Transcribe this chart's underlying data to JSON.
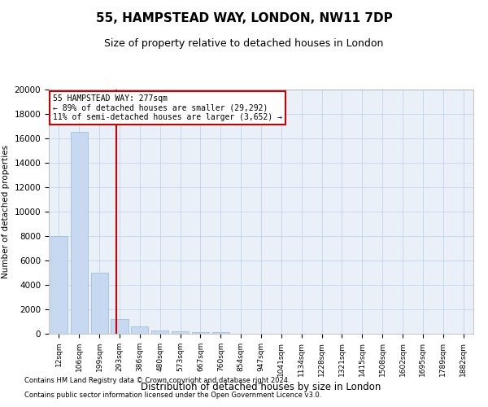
{
  "title": "55, HAMPSTEAD WAY, LONDON, NW11 7DP",
  "subtitle": "Size of property relative to detached houses in London",
  "xlabel": "Distribution of detached houses by size in London",
  "ylabel": "Number of detached properties",
  "footnote1": "Contains HM Land Registry data © Crown copyright and database right 2024.",
  "footnote2": "Contains public sector information licensed under the Open Government Licence v3.0.",
  "property_label": "55 HAMPSTEAD WAY: 277sqm",
  "annotation_line1": "← 89% of detached houses are smaller (29,292)",
  "annotation_line2": "11% of semi-detached houses are larger (3,652) →",
  "bar_color": "#c6d9f0",
  "bar_edge_color": "#9ab8d8",
  "vline_color": "#cc0000",
  "annotation_box_color": "#cc0000",
  "categories": [
    "12sqm",
    "106sqm",
    "199sqm",
    "293sqm",
    "386sqm",
    "480sqm",
    "573sqm",
    "667sqm",
    "760sqm",
    "854sqm",
    "947sqm",
    "1041sqm",
    "1134sqm",
    "1228sqm",
    "1321sqm",
    "1415sqm",
    "1508sqm",
    "1602sqm",
    "1695sqm",
    "1789sqm",
    "1882sqm"
  ],
  "values": [
    8000,
    16500,
    5000,
    1200,
    580,
    290,
    170,
    130,
    110,
    0,
    0,
    0,
    0,
    0,
    0,
    0,
    0,
    0,
    0,
    0,
    0
  ],
  "ylim": [
    0,
    20000
  ],
  "yticks": [
    0,
    2000,
    4000,
    6000,
    8000,
    10000,
    12000,
    14000,
    16000,
    18000,
    20000
  ],
  "vline_x_index": 2.85,
  "title_fontsize": 11,
  "subtitle_fontsize": 9,
  "grid_color": "#c8d8ec",
  "background_color": "#eaf0f8"
}
